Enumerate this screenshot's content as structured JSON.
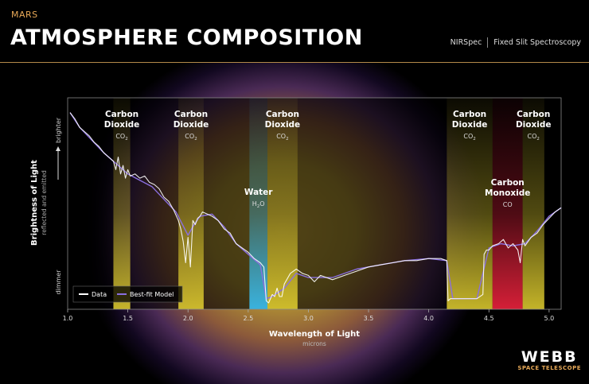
{
  "header": {
    "eyebrow": "MARS",
    "title": "ATMOSPHERE COMPOSITION",
    "instrument": "NIRSpec",
    "mode": "Fixed Slit Spectroscopy"
  },
  "logo": {
    "name": "WEBB",
    "subtitle": "SPACE TELESCOPE"
  },
  "colors": {
    "accent": "#e7a857",
    "data": "#ffffff",
    "model": "#8a6fe0",
    "co2_band": "#e6d330",
    "water_band": "#3ab9e8",
    "co_band": "#e0213a"
  },
  "chart_data": {
    "type": "line",
    "title": "",
    "xlabel": "Wavelength of Light",
    "xlabel_sub": "microns",
    "ylabel": "Brightness of Light",
    "ylabel_sub": "reflected and emitted",
    "ytop_label": "brighter",
    "ybottom_label": "dimmer",
    "xlim": [
      1.0,
      5.1
    ],
    "ylim": [
      0,
      1
    ],
    "xticks": [
      "1.0",
      "1.5",
      "2.0",
      "2.5",
      "3.0",
      "3.5",
      "4.0",
      "4.5",
      "5.0"
    ],
    "xtick_values": [
      1.0,
      1.5,
      2.0,
      2.5,
      3.0,
      3.5,
      4.0,
      4.5,
      5.0
    ],
    "legend": {
      "placement": "bottom-left",
      "items": [
        "Data",
        "Best-fit Model"
      ]
    },
    "bands": [
      {
        "label": "Carbon Dioxide",
        "formula": "CO2",
        "formula_main": "CO",
        "formula_sub": "2",
        "x0": 1.38,
        "x1": 1.52,
        "kind": "co2"
      },
      {
        "label": "Carbon Dioxide",
        "formula": "CO2",
        "formula_main": "CO",
        "formula_sub": "2",
        "x0": 1.92,
        "x1": 2.13,
        "kind": "co2"
      },
      {
        "label": "Water",
        "formula": "H2O",
        "formula_main": "H",
        "formula_sub": "2",
        "formula_tail": "O",
        "x0": 2.51,
        "x1": 2.66,
        "kind": "water"
      },
      {
        "label": "Carbon Dioxide",
        "formula": "CO2",
        "formula_main": "CO",
        "formula_sub": "2",
        "x0": 2.66,
        "x1": 2.91,
        "kind": "co2"
      },
      {
        "label": "Carbon Dioxide",
        "formula": "CO2",
        "formula_main": "CO",
        "formula_sub": "2",
        "x0": 4.15,
        "x1": 4.53,
        "kind": "co2"
      },
      {
        "label": "Carbon Monoxide",
        "formula": "CO",
        "formula_main": "CO",
        "formula_sub": "",
        "x0": 4.53,
        "x1": 4.78,
        "kind": "co"
      },
      {
        "label": "Carbon Dioxide",
        "formula": "CO2",
        "formula_main": "CO",
        "formula_sub": "2",
        "x0": 4.78,
        "x1": 4.96,
        "kind": "co2"
      }
    ],
    "series": [
      {
        "name": "Data",
        "x": [
          1.02,
          1.06,
          1.1,
          1.14,
          1.18,
          1.22,
          1.26,
          1.3,
          1.34,
          1.38,
          1.4,
          1.42,
          1.44,
          1.46,
          1.48,
          1.5,
          1.52,
          1.56,
          1.6,
          1.64,
          1.68,
          1.72,
          1.76,
          1.8,
          1.84,
          1.88,
          1.92,
          1.94,
          1.96,
          1.98,
          2.0,
          2.02,
          2.04,
          2.06,
          2.08,
          2.1,
          2.12,
          2.16,
          2.2,
          2.25,
          2.3,
          2.35,
          2.4,
          2.45,
          2.5,
          2.55,
          2.6,
          2.63,
          2.65,
          2.67,
          2.7,
          2.72,
          2.74,
          2.76,
          2.78,
          2.8,
          2.85,
          2.9,
          2.95,
          3.0,
          3.05,
          3.1,
          3.2,
          3.3,
          3.4,
          3.5,
          3.6,
          3.7,
          3.8,
          3.9,
          4.0,
          4.1,
          4.15,
          4.16,
          4.18,
          4.2,
          4.3,
          4.4,
          4.45,
          4.46,
          4.48,
          4.5,
          4.53,
          4.58,
          4.62,
          4.66,
          4.7,
          4.74,
          4.76,
          4.78,
          4.8,
          4.85,
          4.9,
          4.95,
          5.0,
          5.05,
          5.1
        ],
        "y": [
          0.93,
          0.9,
          0.86,
          0.84,
          0.82,
          0.79,
          0.77,
          0.74,
          0.72,
          0.7,
          0.66,
          0.72,
          0.64,
          0.68,
          0.62,
          0.66,
          0.63,
          0.64,
          0.62,
          0.63,
          0.6,
          0.59,
          0.57,
          0.53,
          0.51,
          0.47,
          0.42,
          0.38,
          0.32,
          0.22,
          0.34,
          0.2,
          0.42,
          0.4,
          0.43,
          0.44,
          0.46,
          0.45,
          0.44,
          0.42,
          0.38,
          0.36,
          0.31,
          0.29,
          0.27,
          0.24,
          0.22,
          0.2,
          0.04,
          0.03,
          0.07,
          0.06,
          0.1,
          0.06,
          0.06,
          0.12,
          0.17,
          0.19,
          0.17,
          0.16,
          0.13,
          0.16,
          0.14,
          0.16,
          0.18,
          0.2,
          0.21,
          0.22,
          0.23,
          0.23,
          0.24,
          0.24,
          0.23,
          0.04,
          0.05,
          0.05,
          0.05,
          0.05,
          0.07,
          0.26,
          0.28,
          0.28,
          0.3,
          0.31,
          0.33,
          0.29,
          0.31,
          0.28,
          0.22,
          0.33,
          0.3,
          0.34,
          0.36,
          0.4,
          0.43,
          0.46,
          0.48
        ]
      },
      {
        "name": "Best-fit Model",
        "x": [
          1.02,
          1.1,
          1.2,
          1.3,
          1.4,
          1.5,
          1.6,
          1.7,
          1.8,
          1.9,
          2.0,
          2.05,
          2.1,
          2.2,
          2.3,
          2.4,
          2.5,
          2.6,
          2.65,
          2.7,
          2.8,
          2.9,
          3.0,
          3.2,
          3.4,
          3.6,
          3.8,
          4.0,
          4.15,
          4.2,
          4.4,
          4.5,
          4.6,
          4.7,
          4.8,
          4.9,
          5.0,
          5.1
        ],
        "y": [
          0.93,
          0.86,
          0.8,
          0.74,
          0.69,
          0.64,
          0.61,
          0.58,
          0.52,
          0.46,
          0.35,
          0.4,
          0.44,
          0.45,
          0.39,
          0.31,
          0.26,
          0.21,
          0.05,
          0.06,
          0.1,
          0.17,
          0.15,
          0.15,
          0.19,
          0.21,
          0.23,
          0.24,
          0.23,
          0.05,
          0.05,
          0.29,
          0.31,
          0.3,
          0.31,
          0.37,
          0.44,
          0.48
        ]
      }
    ]
  }
}
